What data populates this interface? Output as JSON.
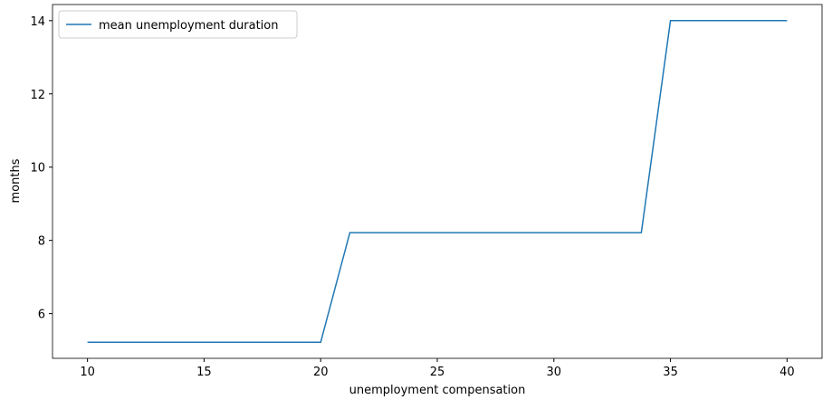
{
  "chart_data": {
    "type": "line",
    "x_label": "unemployment compensation",
    "y_label": "months",
    "x": [
      10,
      11.25,
      12.5,
      13.75,
      15,
      16.25,
      17.5,
      18.75,
      20,
      21.25,
      22.5,
      23.75,
      25,
      26.25,
      27.5,
      28.75,
      30,
      31.25,
      32.5,
      33.75,
      35,
      36.25,
      37.5,
      38.75,
      40
    ],
    "series": [
      {
        "name": "mean unemployment duration",
        "color": "#1f77b4",
        "values": [
          5.22,
          5.22,
          5.22,
          5.22,
          5.22,
          5.22,
          5.22,
          5.22,
          5.22,
          8.21,
          8.21,
          8.21,
          8.21,
          8.21,
          8.21,
          8.21,
          8.21,
          8.21,
          8.21,
          8.21,
          14,
          14,
          14,
          14,
          14
        ]
      }
    ],
    "xlim": [
      8.5,
      41.5
    ],
    "ylim": [
      4.78,
      14.44
    ],
    "xticks": [
      10,
      15,
      20,
      25,
      30,
      35,
      40
    ],
    "yticks": [
      6,
      8,
      10,
      12,
      14
    ],
    "legend": "upper left",
    "grid": false
  }
}
